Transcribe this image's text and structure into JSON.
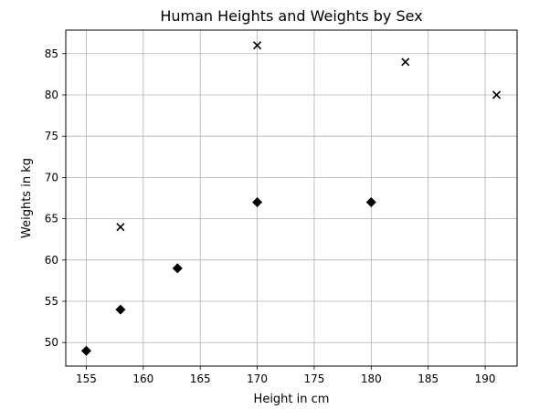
{
  "chart_data": {
    "type": "scatter",
    "title": "Human Heights and Weights by Sex",
    "xlabel": "Height in cm",
    "ylabel": "Weights in kg",
    "xlim": [
      153.2,
      192.8
    ],
    "ylim": [
      47.15,
      87.85
    ],
    "xticks": [
      155,
      160,
      165,
      170,
      175,
      180,
      185,
      190
    ],
    "yticks": [
      50,
      55,
      60,
      65,
      70,
      75,
      80,
      85
    ],
    "grid": true,
    "series": [
      {
        "marker": "x",
        "color": "#000000",
        "x": [
          158,
          170,
          183,
          191
        ],
        "y": [
          64,
          86,
          84,
          80
        ]
      },
      {
        "marker": "diamond",
        "color": "#000000",
        "x": [
          155,
          158,
          163,
          170,
          180
        ],
        "y": [
          49,
          54,
          59,
          67,
          67
        ]
      }
    ]
  }
}
